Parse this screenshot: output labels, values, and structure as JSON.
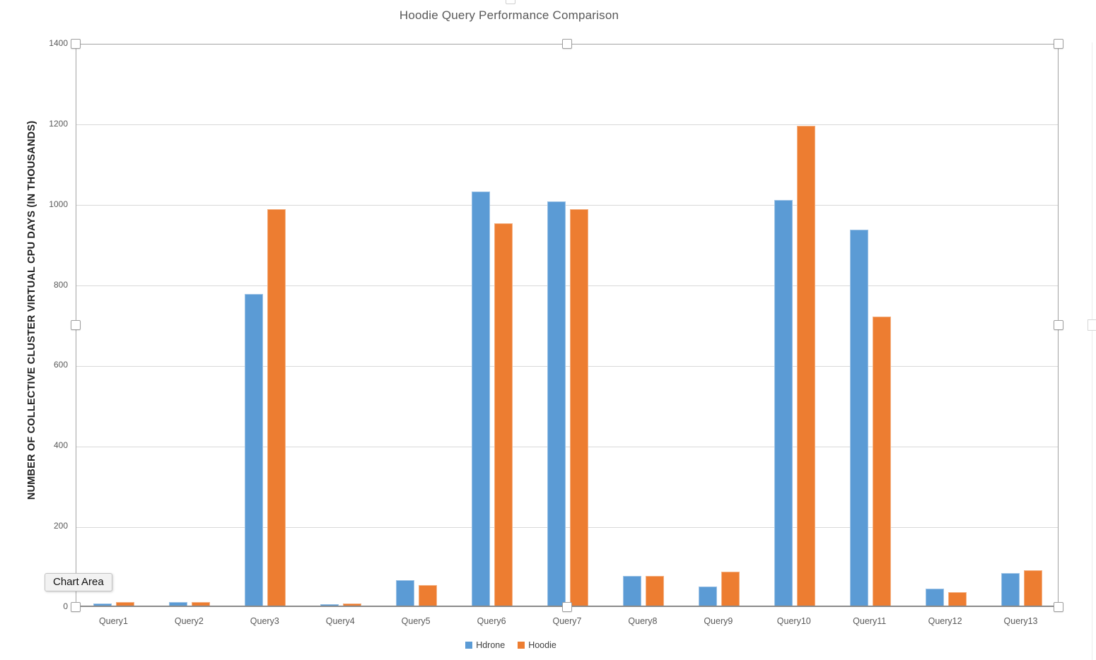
{
  "tooltip": {
    "label": "Chart Area"
  },
  "chart_data": {
    "type": "bar",
    "title": "Hoodie Query Performance Comparison",
    "ylabel": "NUMBER OF COLLECTIVE CLUSTER VIRTUAL CPU DAYS (IN THOUSANDS)",
    "xlabel": "",
    "categories": [
      "Query1",
      "Query2",
      "Query3",
      "Query4",
      "Query5",
      "Query6",
      "Query7",
      "Query8",
      "Query9",
      "Query10",
      "Query11",
      "Query12",
      "Query13"
    ],
    "series": [
      {
        "name": "Hdrone",
        "color": "#5B9BD5",
        "edge_color": "#9DC3E6",
        "values": [
          5,
          9,
          775,
          4,
          63,
          1030,
          1005,
          74,
          47,
          1008,
          935,
          42,
          80
        ]
      },
      {
        "name": "Hoodie",
        "color": "#ED7D31",
        "edge_color": "#F4B183",
        "values": [
          9,
          9,
          985,
          5,
          51,
          950,
          985,
          73,
          84,
          1193,
          718,
          33,
          88
        ]
      }
    ],
    "ylim": [
      0,
      1400
    ],
    "yticks": [
      0,
      200,
      400,
      600,
      800,
      1000,
      1200,
      1400
    ],
    "grid": "horizontal",
    "legend_position": "bottom",
    "colors": {
      "gridline": "#D9D9D9",
      "axis_line": "#8A8A8A",
      "plot_border": "#A3A3A3",
      "tick_text": "#595959",
      "title_text": "#595959",
      "ylabel_text": "#1F1F1F",
      "background": "#FFFFFF"
    }
  }
}
